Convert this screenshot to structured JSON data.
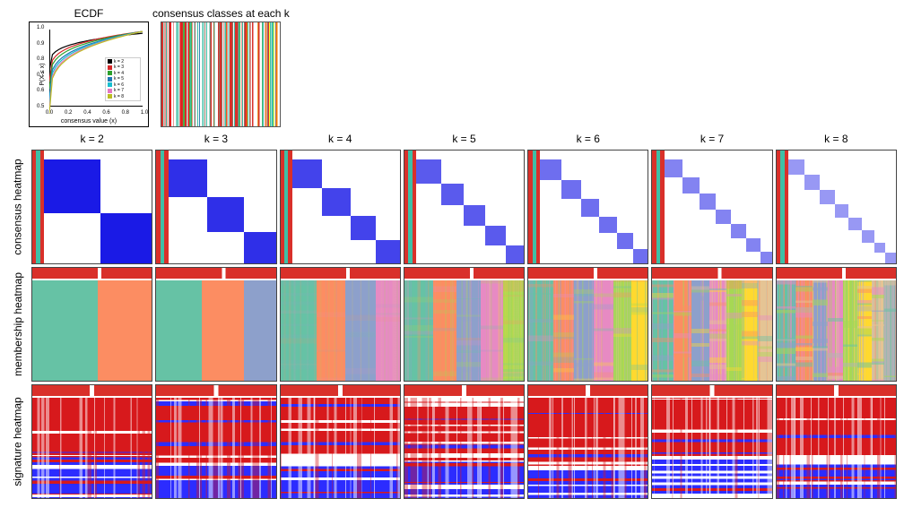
{
  "ecdf": {
    "title": "ECDF",
    "xlabel": "consensus value (x)",
    "ylabel": "P(X ≤ x)",
    "xlim": [
      0.0,
      1.0
    ],
    "ylim": [
      0.5,
      1.0
    ],
    "xticks": [
      "0.0",
      "0.2",
      "0.4",
      "0.6",
      "0.8",
      "1.0"
    ],
    "yticks": [
      "0.5",
      "0.6",
      "0.7",
      "0.8",
      "0.9",
      "1.0"
    ],
    "series": [
      {
        "k": 2,
        "color": "#000000",
        "start": 0.78,
        "end": 0.98
      },
      {
        "k": 3,
        "color": "#d62728",
        "start": 0.72,
        "end": 0.99
      },
      {
        "k": 4,
        "color": "#2ca02c",
        "start": 0.68,
        "end": 0.99
      },
      {
        "k": 5,
        "color": "#1f77b4",
        "start": 0.63,
        "end": 0.99
      },
      {
        "k": 6,
        "color": "#17becf",
        "start": 0.6,
        "end": 0.99
      },
      {
        "k": 7,
        "color": "#e377c2",
        "start": 0.57,
        "end": 0.99
      },
      {
        "k": 8,
        "color": "#bcbd22",
        "start": 0.55,
        "end": 0.99
      }
    ],
    "legend_label_prefix": "k = "
  },
  "consensus_classes": {
    "title": "consensus classes at each k",
    "palette": [
      "#4daf4a",
      "#e41a1c",
      "#ffffff",
      "#377eb8",
      "#ff7f00",
      "#ffff33",
      "#66c2a5",
      "#f781bf"
    ],
    "n_k_cols": 7
  },
  "k_values": [
    2,
    3,
    4,
    5,
    6,
    7,
    8
  ],
  "row_labels": {
    "consensus": "consensus heatmap",
    "membership": "membership heatmap",
    "signature": "signature heatmap"
  },
  "colors": {
    "cluster_palette": [
      "#4daf4a",
      "#e41a1c",
      "#377eb8",
      "#984ea3",
      "#ff7f00",
      "#ffff33",
      "#a65628",
      "#f781bf"
    ],
    "class_bar_red": "#d9302a",
    "class_bar_teal": "#3fbfa6",
    "consensus_blue": "#1a1ae6",
    "consensus_fade": "#bfbfff",
    "membership_palette": [
      "#66c2a5",
      "#fc8d62",
      "#8da0cb",
      "#e78ac3",
      "#a6d854",
      "#ffd92f",
      "#e5c494",
      "#b3b3b3"
    ],
    "signature_high": "#d7191c",
    "signature_mid": "#ffffff",
    "signature_low": "#2c2cff",
    "bin_red": "#b02418",
    "bin_blue": "#2b3fe0"
  },
  "membership_widths": {
    "2": [
      0.55,
      0.45
    ],
    "3": [
      0.38,
      0.35,
      0.27
    ],
    "4": [
      0.3,
      0.24,
      0.26,
      0.2
    ],
    "5": [
      0.24,
      0.2,
      0.2,
      0.19,
      0.17
    ],
    "6": [
      0.21,
      0.17,
      0.17,
      0.16,
      0.15,
      0.14
    ],
    "7": [
      0.18,
      0.15,
      0.15,
      0.14,
      0.13,
      0.13,
      0.12
    ],
    "8": [
      0.16,
      0.14,
      0.13,
      0.13,
      0.12,
      0.12,
      0.1,
      0.1
    ]
  },
  "consensus_block_fracs": {
    "2": [
      0.52,
      0.48
    ],
    "3": [
      0.36,
      0.34,
      0.3
    ],
    "4": [
      0.28,
      0.26,
      0.24,
      0.22
    ],
    "5": [
      0.23,
      0.21,
      0.2,
      0.19,
      0.17
    ],
    "6": [
      0.2,
      0.18,
      0.17,
      0.16,
      0.15,
      0.14
    ],
    "7": [
      0.17,
      0.16,
      0.15,
      0.14,
      0.14,
      0.13,
      0.11
    ],
    "8": [
      0.15,
      0.14,
      0.14,
      0.13,
      0.12,
      0.12,
      0.1,
      0.1
    ]
  }
}
